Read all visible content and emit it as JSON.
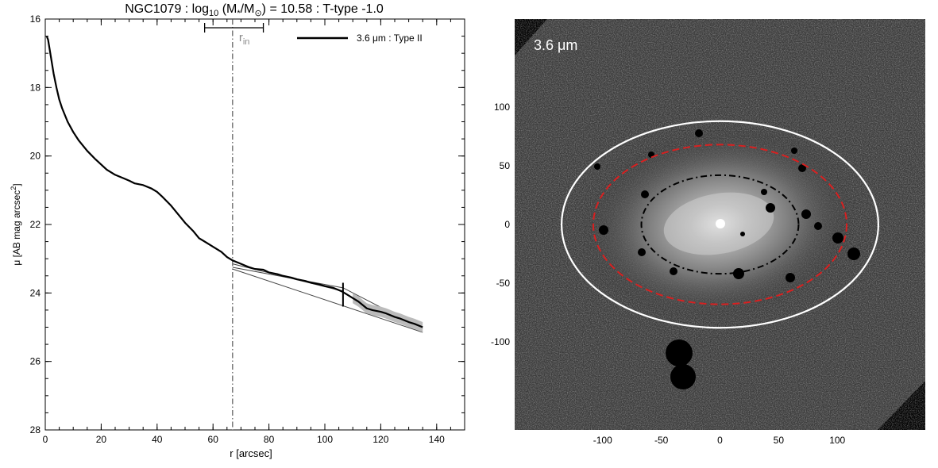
{
  "chart_data": [
    {
      "type": "line",
      "title": {
        "galaxy": "NGC1079",
        "part_a": " : log",
        "part_a_sub": "10",
        "part_b": " (M",
        "part_b_sub": "*",
        "part_c": "/M",
        "part_c_sub": "⊙",
        "part_d": ") = 10.58 : T-type -1.0"
      },
      "xlabel": "r [arcsec]",
      "ylabel": "μ [AB mag arcsec",
      "ylabel_sup": "2",
      "ylabel_end": "]",
      "xlim": [
        0,
        150
      ],
      "ylim": [
        28,
        16
      ],
      "y_inverted": true,
      "x_ticks": [
        "0",
        "20",
        "40",
        "60",
        "80",
        "100",
        "120",
        "140"
      ],
      "y_ticks": [
        "16",
        "18",
        "20",
        "22",
        "24",
        "26",
        "28"
      ],
      "legend": {
        "label": "3.6 μm : Type II",
        "placement": "top-right"
      },
      "r_in": {
        "label": "r",
        "sub": "in",
        "value": 67,
        "range": [
          57,
          78
        ]
      },
      "break_radius": 106.5,
      "series": [
        {
          "name": "3.6 μm : Type II",
          "x": [
            0.5,
            1,
            2,
            3,
            4,
            5,
            6,
            8,
            10,
            12,
            15,
            18,
            20,
            22,
            25,
            28,
            30,
            32,
            35,
            38,
            40,
            42,
            45,
            48,
            50,
            53,
            55,
            58,
            60,
            63,
            65,
            67,
            70,
            73,
            75,
            78,
            80,
            83,
            85,
            88,
            90,
            93,
            95,
            98,
            100,
            103,
            106,
            108,
            110,
            112,
            115,
            117,
            120,
            122,
            125,
            127,
            130,
            132,
            135
          ],
          "y": [
            16.5,
            16.6,
            17.1,
            17.6,
            18.0,
            18.35,
            18.6,
            19.0,
            19.3,
            19.55,
            19.85,
            20.1,
            20.25,
            20.4,
            20.55,
            20.65,
            20.72,
            20.8,
            20.85,
            20.95,
            21.05,
            21.2,
            21.45,
            21.75,
            21.95,
            22.2,
            22.4,
            22.55,
            22.65,
            22.8,
            22.95,
            23.05,
            23.15,
            23.25,
            23.3,
            23.32,
            23.4,
            23.45,
            23.5,
            23.55,
            23.6,
            23.65,
            23.7,
            23.75,
            23.8,
            23.85,
            23.95,
            24.05,
            24.15,
            24.25,
            24.45,
            24.5,
            24.55,
            24.6,
            24.7,
            24.75,
            24.85,
            24.9,
            25.0
          ]
        }
      ],
      "fits": [
        {
          "x": [
            67,
            106.5
          ],
          "y": [
            23.15,
            23.95
          ]
        },
        {
          "x": [
            67,
            135
          ],
          "y": [
            23.3,
            25.15
          ]
        },
        {
          "x": [
            67,
            106.5,
            135
          ],
          "y": [
            23.25,
            23.85,
            25.05
          ]
        }
      ]
    },
    {
      "type": "image",
      "image_label": "3.6 μm",
      "x_ticks": [
        "-100",
        "-50",
        "0",
        "50",
        "100"
      ],
      "y_ticks": [
        "100",
        "50",
        "0",
        "-50",
        "-100"
      ],
      "xlim": [
        -175,
        175
      ],
      "ylim": [
        -175,
        175
      ],
      "ellipses": [
        {
          "name": "outer",
          "color": "#ffffff",
          "style": "solid",
          "cx": 0,
          "cy": 0,
          "a": 135,
          "b": 88
        },
        {
          "name": "middle",
          "color": "#d92020",
          "style": "dashed",
          "cx": 0,
          "cy": 0,
          "a": 108,
          "b": 68
        },
        {
          "name": "inner",
          "color": "#000000",
          "style": "dash-dot",
          "cx": 0,
          "cy": 0,
          "a": 67,
          "b": 42
        }
      ]
    }
  ]
}
